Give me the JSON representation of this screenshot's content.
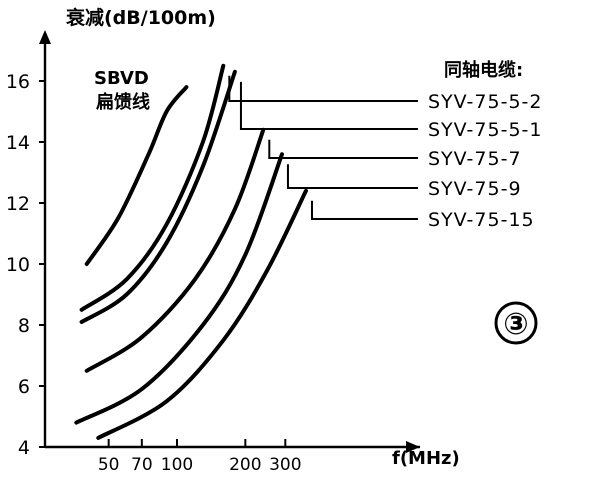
{
  "figure_badge": "③",
  "chart_data": {
    "type": "line",
    "ylabel": "衰减(dB/100m)",
    "xlabel": "f(MHz)",
    "ylim": [
      4,
      17.5
    ],
    "y_ticks": [
      4,
      6,
      8,
      10,
      12,
      14,
      16
    ],
    "x_ticks": [
      50,
      70,
      100,
      200,
      300
    ],
    "x_scale": "log",
    "grid": false,
    "legend_title": "同轴电缆:",
    "annotation": {
      "line1": "SBVD",
      "line2": "扁馈线"
    },
    "series": [
      {
        "name": "SBVD 扁馈线",
        "labeled": false,
        "x": [
          40,
          55,
          75,
          90,
          110
        ],
        "y": [
          10,
          11.5,
          13.6,
          15.0,
          15.8
        ]
      },
      {
        "name": "SYV-75-5-2",
        "labeled": true,
        "x": [
          38,
          60,
          90,
          130,
          160
        ],
        "y": [
          8.5,
          9.5,
          11.3,
          14.0,
          16.5
        ]
      },
      {
        "name": "SYV-75-5-1",
        "labeled": true,
        "x": [
          38,
          60,
          90,
          130,
          180
        ],
        "y": [
          8.1,
          9.0,
          10.7,
          13.2,
          16.3
        ]
      },
      {
        "name": "SYV-75-7",
        "labeled": true,
        "x": [
          40,
          70,
          120,
          180,
          240
        ],
        "y": [
          6.5,
          7.6,
          9.5,
          11.8,
          14.4
        ]
      },
      {
        "name": "SYV-75-9",
        "labeled": true,
        "x": [
          36,
          70,
          130,
          200,
          290
        ],
        "y": [
          4.8,
          5.9,
          8.0,
          10.3,
          13.6
        ]
      },
      {
        "name": "SYV-75-15",
        "labeled": true,
        "x": [
          45,
          90,
          160,
          250,
          370
        ],
        "y": [
          4.3,
          5.5,
          7.5,
          9.8,
          12.4
        ]
      }
    ]
  }
}
